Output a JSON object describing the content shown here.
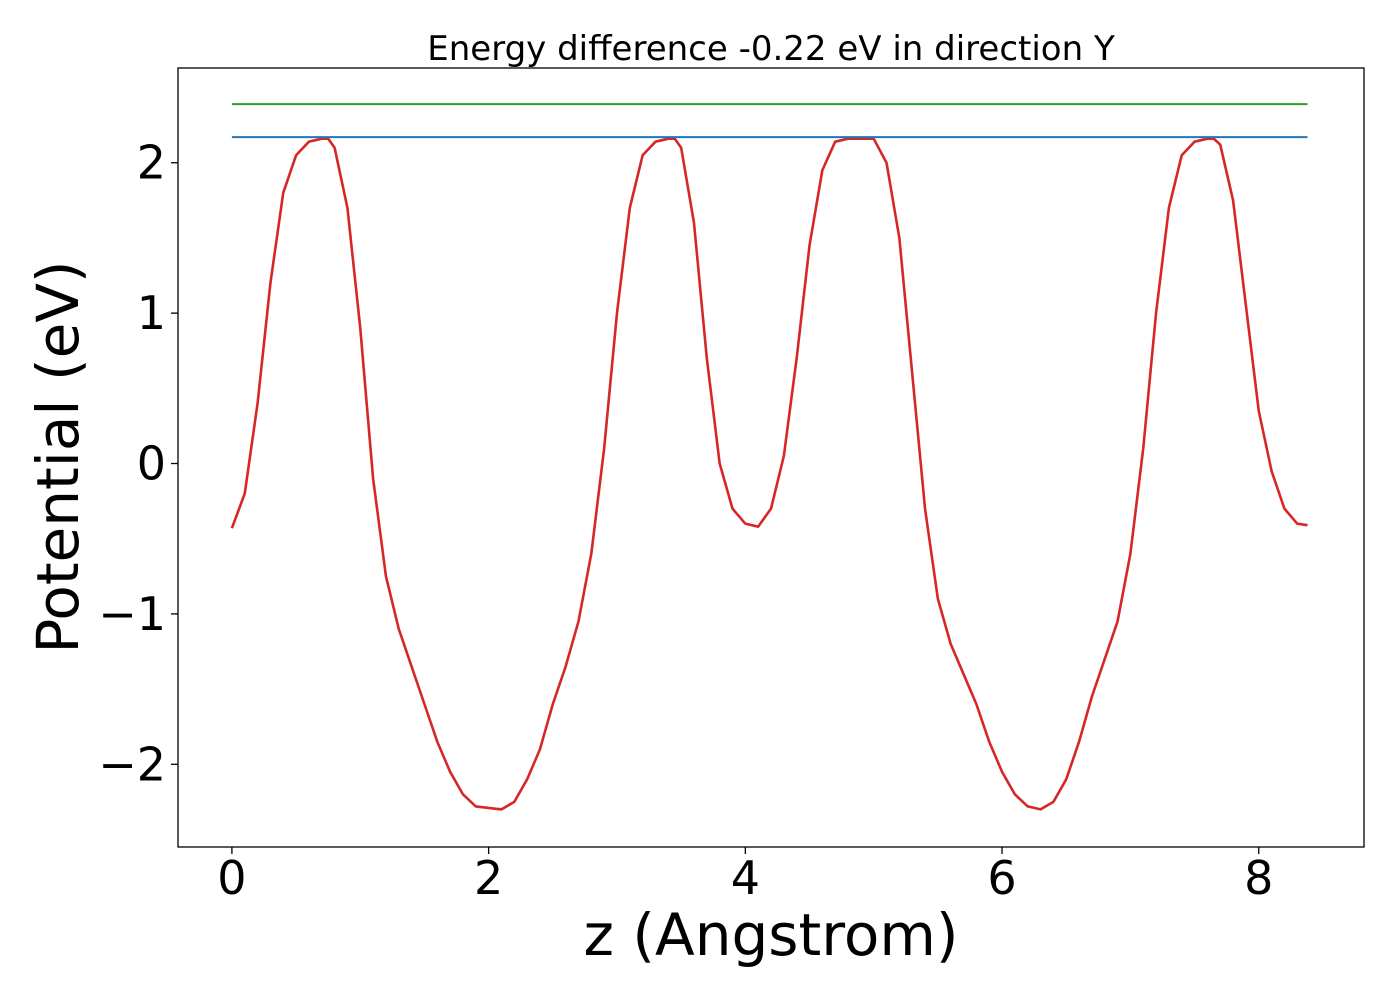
{
  "chart_data": {
    "type": "line",
    "title": "Energy difference -0.22 eV in direction Y",
    "xlabel": "z (Angstrom)",
    "ylabel": "Potential (eV)",
    "xlim": [
      -0.42,
      8.82
    ],
    "ylim": [
      -2.55,
      2.63
    ],
    "xticks": [
      0,
      2,
      4,
      6,
      8
    ],
    "xtick_labels": [
      "0",
      "2",
      "4",
      "6",
      "8"
    ],
    "yticks": [
      -2,
      -1,
      0,
      1,
      2
    ],
    "ytick_labels": [
      "−2",
      "−1",
      "0",
      "1",
      "2"
    ],
    "grid": false,
    "legend": "none",
    "series": [
      {
        "color": "#d62728",
        "x": [
          0.0,
          0.1,
          0.2,
          0.3,
          0.4,
          0.5,
          0.6,
          0.7,
          0.75,
          0.8,
          0.9,
          1.0,
          1.1,
          1.2,
          1.3,
          1.4,
          1.5,
          1.6,
          1.7,
          1.8,
          1.9,
          2.0,
          2.1,
          2.2,
          2.3,
          2.4,
          2.5,
          2.6,
          2.7,
          2.8,
          2.9,
          3.0,
          3.1,
          3.2,
          3.3,
          3.4,
          3.45,
          3.5,
          3.6,
          3.7,
          3.8,
          3.9,
          4.0,
          4.1,
          4.2,
          4.3,
          4.4,
          4.5,
          4.6,
          4.7,
          4.8,
          4.9,
          5.0,
          5.1,
          5.2,
          5.3,
          5.4,
          5.5,
          5.6,
          5.7,
          5.8,
          5.9,
          6.0,
          6.1,
          6.2,
          6.3,
          6.4,
          6.5,
          6.6,
          6.7,
          6.8,
          6.9,
          7.0,
          7.1,
          7.2,
          7.3,
          7.4,
          7.5,
          7.6,
          7.65,
          7.7,
          7.8,
          7.9,
          8.0,
          8.1,
          8.2,
          8.3,
          8.38
        ],
        "y": [
          -0.43,
          -0.2,
          0.4,
          1.2,
          1.8,
          2.05,
          2.14,
          2.16,
          2.16,
          2.1,
          1.7,
          0.9,
          -0.1,
          -0.75,
          -1.1,
          -1.35,
          -1.6,
          -1.85,
          -2.05,
          -2.2,
          -2.28,
          -2.29,
          -2.3,
          -2.25,
          -2.1,
          -1.9,
          -1.6,
          -1.35,
          -1.05,
          -0.6,
          0.1,
          1.0,
          1.7,
          2.05,
          2.14,
          2.16,
          2.16,
          2.1,
          1.6,
          0.7,
          0.0,
          -0.3,
          -0.4,
          -0.42,
          -0.3,
          0.05,
          0.7,
          1.45,
          1.95,
          2.14,
          2.16,
          2.16,
          2.16,
          2.0,
          1.5,
          0.6,
          -0.3,
          -0.9,
          -1.2,
          -1.4,
          -1.6,
          -1.85,
          -2.05,
          -2.2,
          -2.28,
          -2.3,
          -2.25,
          -2.1,
          -1.85,
          -1.55,
          -1.3,
          -1.05,
          -0.6,
          0.1,
          1.0,
          1.7,
          2.05,
          2.14,
          2.16,
          2.16,
          2.12,
          1.75,
          1.05,
          0.35,
          -0.05,
          -0.3,
          -0.4,
          -0.41
        ]
      },
      {
        "color": "#1f77b4",
        "x": [
          0.0,
          8.38
        ],
        "y": [
          2.17,
          2.17
        ]
      },
      {
        "color": "#2ca02c",
        "x": [
          0.0,
          8.38
        ],
        "y": [
          2.39,
          2.39
        ]
      }
    ]
  }
}
